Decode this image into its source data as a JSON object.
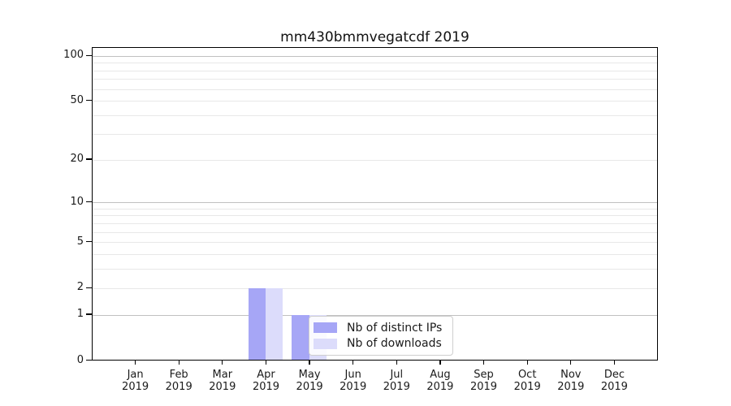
{
  "chart_data": {
    "type": "bar",
    "title": "mm430bmmvegatcdf 2019",
    "categories": [
      "Jan",
      "Feb",
      "Mar",
      "Apr",
      "May",
      "Jun",
      "Jul",
      "Aug",
      "Sep",
      "Oct",
      "Nov",
      "Dec"
    ],
    "year": "2019",
    "x_tick_labels": [
      "Jan 2019",
      "Feb 2019",
      "Mar 2019",
      "Apr 2019",
      "May 2019",
      "Jun 2019",
      "Jul 2019",
      "Aug 2019",
      "Sep 2019",
      "Oct 2019",
      "Nov 2019",
      "Dec 2019"
    ],
    "series": [
      {
        "name": "Nb of distinct IPs",
        "color": "#a6a6f6",
        "values": [
          0,
          0,
          0,
          2,
          1,
          0,
          0,
          0,
          0,
          0,
          0,
          0
        ]
      },
      {
        "name": "Nb of downloads",
        "color": "#dcdcfb",
        "values": [
          0,
          0,
          0,
          2,
          1,
          0,
          0,
          0,
          0,
          0,
          0,
          0
        ]
      }
    ],
    "yscale": "log1p",
    "ylim": [
      0,
      113
    ],
    "yticks": [
      0,
      1,
      2,
      5,
      10,
      20,
      50,
      100
    ],
    "grid": "horizontal",
    "grid_major_at": [
      1,
      10,
      100
    ],
    "grid_minor_at": [
      2,
      3,
      4,
      5,
      6,
      7,
      8,
      9,
      20,
      30,
      40,
      50,
      60,
      70,
      80,
      90
    ],
    "legend": {
      "position": "lower center-right inside plot",
      "labels": [
        "Nb of distinct IPs",
        "Nb of downloads"
      ]
    },
    "colors": {
      "grid_major": "#c0c0c0",
      "grid_minor": "#e8e8e8",
      "spine": "#000000",
      "text": "#1a1a1a",
      "background": "#ffffff"
    }
  }
}
